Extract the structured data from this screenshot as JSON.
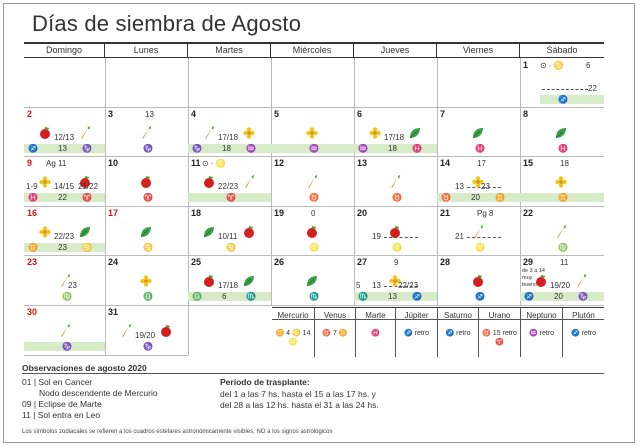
{
  "title": "Días de siembra de Agosto",
  "weekdays": [
    "Domingo",
    "Lunes",
    "Martes",
    "Miércoles",
    "Jueves",
    "Viernes",
    "Sábado"
  ],
  "days": {
    "d1": {
      "num": "1",
      "phase": "⊙ · ♋",
      "extra": "6",
      "zod": "♐",
      "dash": "22"
    },
    "d2": {
      "num": "2",
      "frac": "12/13",
      "zod1": "♐",
      "zod2": "13",
      "zod3": "♑"
    },
    "d3": {
      "num": "3",
      "phase": "13",
      "zod": "♑"
    },
    "d4": {
      "num": "4",
      "frac": "17/18",
      "zod1": "♑",
      "zod2": "18",
      "zod3": "♒"
    },
    "d5": {
      "num": "5",
      "zod": "♒"
    },
    "d6": {
      "num": "6",
      "frac": "17/18",
      "zod1": "♒",
      "zod2": "18",
      "zod3": "♓"
    },
    "d7": {
      "num": "7",
      "zod": "♓"
    },
    "d8": {
      "num": "8",
      "zod": "♓"
    },
    "d9": {
      "num": "9",
      "phase": "Ag 11",
      "left": "1-9",
      "frac": "14/15",
      "frac2": "21/22",
      "zod1": "♓",
      "zod2": "22",
      "zod3": "♈"
    },
    "d10": {
      "num": "10",
      "zod": "♈"
    },
    "d11": {
      "num": "11",
      "phase": "⊙ · ♌",
      "frac": "22/23",
      "zod": "♈"
    },
    "d12": {
      "num": "12",
      "zod": "♉"
    },
    "d13": {
      "num": "13",
      "zod": "♉"
    },
    "d14": {
      "num": "14",
      "phase": "17",
      "dash": "13",
      "frac": "23",
      "zod1": "♉",
      "zod2": "20",
      "zod3": "♊"
    },
    "d15": {
      "num": "15",
      "phase": "18",
      "zod": "♊"
    },
    "d16": {
      "num": "16",
      "frac": "22/23",
      "zod1": "♊",
      "zod2": "23",
      "zod3": "♋"
    },
    "d17": {
      "num": "17",
      "zod": "♋"
    },
    "d18": {
      "num": "18",
      "frac": "10/11",
      "zod": "♋"
    },
    "d19": {
      "num": "19",
      "phase": "0",
      "zod": "♌"
    },
    "d20": {
      "num": "20",
      "dash": "19",
      "zod": "♌"
    },
    "d21": {
      "num": "21",
      "phase": "Pg 8",
      "dash": "21",
      "zod": "♌"
    },
    "d22": {
      "num": "22",
      "zod": "♍"
    },
    "d23": {
      "num": "23",
      "frac": "23",
      "zod": "♍"
    },
    "d24": {
      "num": "24",
      "zod": "♎"
    },
    "d25": {
      "num": "25",
      "frac": "17/18",
      "zod1": "♎",
      "zod2": "6",
      "zod3": "♏"
    },
    "d26": {
      "num": "26",
      "zod": "♏"
    },
    "d27": {
      "num": "27",
      "phase": "9",
      "left": "5",
      "dash": "13",
      "frac": "22/23",
      "zod1": "♏",
      "zod2": "13",
      "zod3": "♐"
    },
    "d28": {
      "num": "28",
      "zod": "♐"
    },
    "d29": {
      "num": "29",
      "phase": "11",
      "note": "de 3 a 14 muy bueno",
      "frac": "19/20",
      "zod1": "♐",
      "zod2": "20",
      "zod3": "♑"
    },
    "d30": {
      "num": "30",
      "zod": "♑"
    },
    "d31": {
      "num": "31",
      "frac": "19/20",
      "zod": "♑"
    }
  },
  "planets": [
    {
      "name": "Mercurio",
      "value": "♊ 4 ♋ 14 ♌"
    },
    {
      "name": "Venus",
      "value": "♉ 7 ♊"
    },
    {
      "name": "Marte",
      "value": "♓"
    },
    {
      "name": "Júpiter",
      "value": "♐ retro"
    },
    {
      "name": "Saturno",
      "value": "♐ retro"
    },
    {
      "name": "Urano",
      "value": "♉ 15 retro ♈"
    },
    {
      "name": "Neptuno",
      "value": "♒ retro"
    },
    {
      "name": "Plutón",
      "value": "♐ retro"
    }
  ],
  "observations": {
    "title": "Observaciones de agosto 2020",
    "items": [
      "01 | Sol en Cancer",
      "Nodo descendente de Mercurio",
      "09 | Eclipse de Marte",
      "11 | Sol entra en Leo"
    ]
  },
  "transplant": {
    "title": "Período de trasplante:",
    "lines": [
      "del 1 a las 7 hs. hasta el 15 a las 17 hs. y",
      "del 28 a las 12 hs. hasta el 31 a las 24 hs."
    ]
  },
  "footnote": "Los símbolos zodiacales se refieren a los cuadros estelares astronómicamente visibles, NO a los signos astrológicos",
  "colors": {
    "fruit": "#d41f1f",
    "root": "#e07a1c",
    "flower": "#f2c418",
    "leaf": "#3aa04a",
    "strip": "#d8ebc8",
    "red_day": "#d0151b"
  }
}
